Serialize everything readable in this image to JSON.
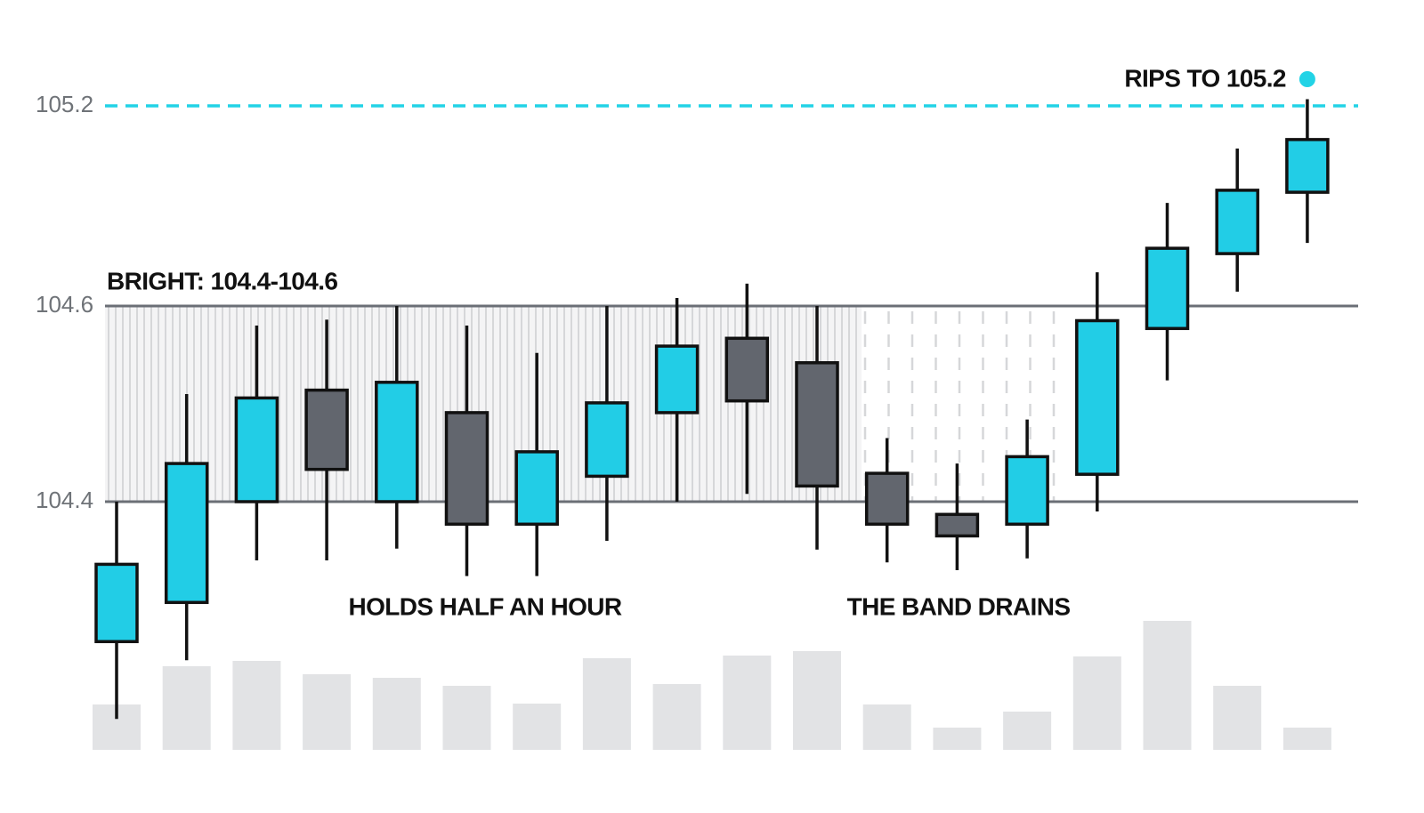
{
  "chart_data": {
    "type": "candlestick",
    "yticks": [
      104.4,
      104.6,
      105.2
    ],
    "grid": true,
    "up_color": "#22cde6",
    "down_color": "#62666e",
    "volume_color": "#e2e3e5",
    "band": {
      "label": "BRIGHT: 104.4-104.6",
      "range": [
        104.4,
        104.6
      ]
    },
    "target": {
      "label": "RIPS TO 105.2",
      "value": 105.2,
      "color": "#22d3e6"
    },
    "annotations": [
      "HOLDS HALF AN HOUR",
      "THE BAND DRAINS"
    ],
    "open": [
      104.257,
      104.297,
      104.4,
      104.514,
      104.4,
      104.491,
      104.377,
      104.426,
      104.491,
      104.567,
      104.542,
      104.429,
      104.387,
      104.377,
      104.428,
      104.577,
      104.757,
      104.941
    ],
    "high": [
      104.4,
      104.51,
      104.58,
      104.586,
      104.6,
      104.58,
      104.552,
      104.6,
      104.624,
      104.667,
      104.6,
      104.465,
      104.439,
      104.484,
      104.701,
      104.909,
      105.072,
      105.22
    ],
    "low": [
      104.178,
      104.238,
      104.34,
      104.34,
      104.352,
      104.324,
      104.324,
      104.36,
      104.4,
      104.408,
      104.351,
      104.338,
      104.33,
      104.342,
      104.39,
      104.524,
      104.643,
      104.789
    ],
    "close": [
      104.336,
      104.439,
      104.506,
      104.433,
      104.522,
      104.377,
      104.451,
      104.501,
      104.559,
      104.503,
      104.416,
      104.377,
      104.365,
      104.446,
      104.585,
      104.773,
      104.947,
      105.099
    ],
    "volume": [
      51,
      94,
      100,
      85,
      81,
      72,
      52,
      103,
      74,
      106,
      111,
      51,
      25,
      43,
      105,
      145,
      72,
      25
    ]
  }
}
